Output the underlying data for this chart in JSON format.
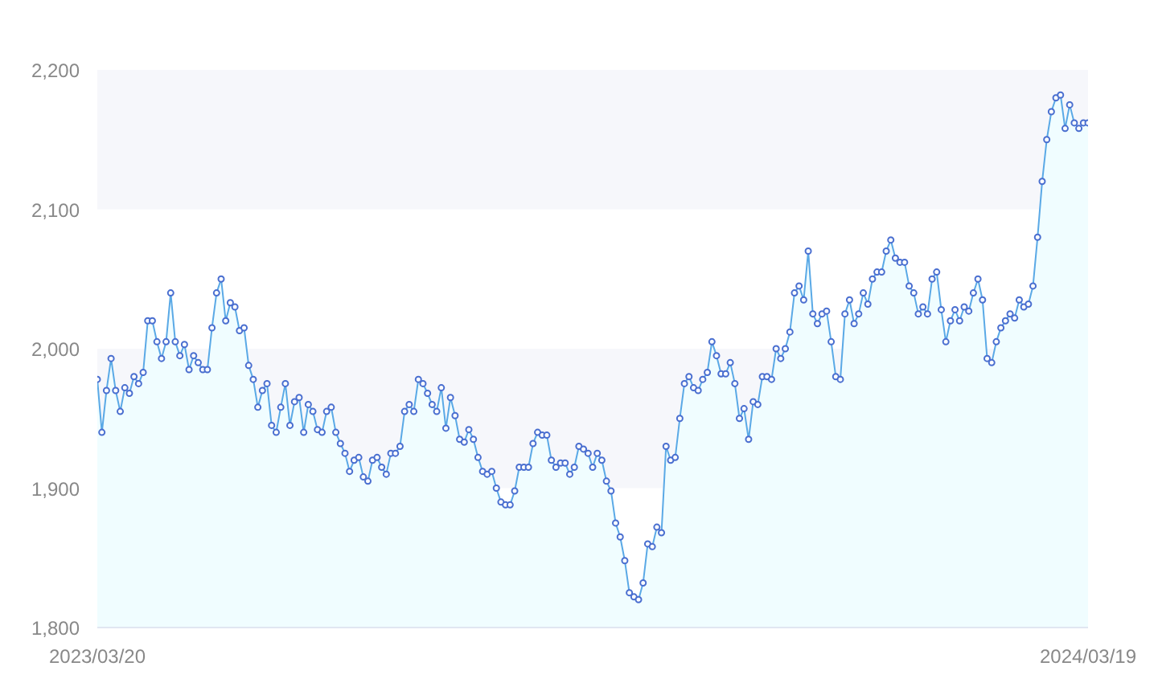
{
  "chart_data": {
    "type": "area",
    "marker": "circle",
    "line_style": "solid",
    "categories": [
      "2023/03/20",
      null,
      null,
      null,
      null,
      null,
      null,
      null,
      null,
      null,
      null,
      null,
      null,
      null,
      null,
      null,
      null,
      null,
      null,
      null,
      null,
      null,
      null,
      null,
      null,
      null,
      null,
      null,
      null,
      null,
      null,
      null,
      null,
      null,
      null,
      null,
      null,
      null,
      null,
      null,
      null,
      null,
      null,
      null,
      null,
      null,
      null,
      null,
      null,
      null,
      null,
      null,
      null,
      null,
      null,
      null,
      null,
      null,
      null,
      null,
      null,
      null,
      null,
      null,
      null,
      null,
      null,
      null,
      null,
      null,
      null,
      null,
      null,
      null,
      null,
      null,
      null,
      null,
      null,
      null,
      null,
      null,
      null,
      null,
      null,
      null,
      null,
      null,
      null,
      null,
      null,
      null,
      null,
      null,
      null,
      null,
      null,
      null,
      null,
      null,
      null,
      null,
      null,
      null,
      null,
      null,
      null,
      null,
      null,
      null,
      null,
      null,
      null,
      null,
      null,
      null,
      null,
      null,
      null,
      null,
      null,
      null,
      null,
      null,
      null,
      null,
      null,
      null,
      null,
      null,
      null,
      null,
      null,
      null,
      null,
      null,
      null,
      null,
      null,
      null,
      null,
      null,
      null,
      null,
      null,
      null,
      null,
      null,
      null,
      null,
      null,
      null,
      null,
      null,
      null,
      null,
      null,
      null,
      null,
      null,
      null,
      null,
      null,
      null,
      null,
      null,
      null,
      null,
      null,
      null,
      null,
      null,
      null,
      null,
      null,
      null,
      null,
      null,
      null,
      null,
      null,
      null,
      null,
      null,
      null,
      null,
      null,
      null,
      null,
      null,
      null,
      null,
      null,
      null,
      null,
      null,
      null,
      null,
      null,
      null,
      null,
      null,
      null,
      null,
      null,
      null,
      null,
      null,
      null,
      null,
      null,
      null,
      null,
      null,
      null,
      null,
      "2024/03/19"
    ],
    "series": [
      {
        "color": "#5aa9e6",
        "values": [
          1978,
          1940,
          1970,
          1993,
          1970,
          1955,
          1972,
          1968,
          1980,
          1975,
          1983,
          2020,
          2020,
          2005,
          1993,
          2005,
          2040,
          2005,
          1995,
          2003,
          1985,
          1995,
          1990,
          1985,
          1985,
          2015,
          2040,
          2050,
          2020,
          2033,
          2030,
          2013,
          2015,
          1988,
          1978,
          1958,
          1970,
          1975,
          1945,
          1940,
          1958,
          1975,
          1945,
          1962,
          1965,
          1940,
          1960,
          1955,
          1942,
          1940,
          1955,
          1958,
          1940,
          1932,
          1925,
          1912,
          1920,
          1922,
          1908,
          1905,
          1920,
          1922,
          1915,
          1910,
          1925,
          1925,
          1930,
          1955,
          1960,
          1955,
          1978,
          1975,
          1968,
          1960,
          1955,
          1972,
          1943,
          1965,
          1952,
          1935,
          1933,
          1942,
          1935,
          1922,
          1912,
          1910,
          1912,
          1900,
          1890,
          1888,
          1888,
          1898,
          1915,
          1915,
          1915,
          1932,
          1940,
          1938,
          1938,
          1920,
          1915,
          1918,
          1918,
          1910,
          1915,
          1930,
          1928,
          1925,
          1915,
          1925,
          1920,
          1905,
          1898,
          1875,
          1865,
          1848,
          1825,
          1822,
          1820,
          1832,
          1860,
          1858,
          1872,
          1868,
          1930,
          1920,
          1922,
          1950,
          1975,
          1980,
          1972,
          1970,
          1978,
          1983,
          2005,
          1995,
          1982,
          1982,
          1990,
          1975,
          1950,
          1957,
          1935,
          1962,
          1960,
          1980,
          1980,
          1978,
          2000,
          1993,
          2000,
          2012,
          2040,
          2045,
          2035,
          2070,
          2025,
          2018,
          2025,
          2027,
          2005,
          1980,
          1978,
          2025,
          2035,
          2018,
          2025,
          2040,
          2032,
          2050,
          2055,
          2055,
          2070,
          2078,
          2065,
          2062,
          2062,
          2045,
          2040,
          2025,
          2030,
          2025,
          2050,
          2055,
          2028,
          2005,
          2020,
          2028,
          2020,
          2030,
          2027,
          2040,
          2050,
          2035,
          1993,
          1990,
          2005,
          2015,
          2020,
          2025,
          2022,
          2035,
          2030,
          2032,
          2045,
          2080,
          2120,
          2150,
          2170,
          2180,
          2182,
          2158,
          2175,
          2162,
          2158,
          2162,
          2162
        ]
      }
    ],
    "ylim": [
      1800,
      2200
    ],
    "yticks": [
      {
        "value": 1800,
        "label": "1,800"
      },
      {
        "value": 1900,
        "label": "1,900"
      },
      {
        "value": 2000,
        "label": "2,000"
      },
      {
        "value": 2100,
        "label": "2,100"
      },
      {
        "value": 2200,
        "label": "2,200"
      }
    ],
    "bands": [
      {
        "axis": "y",
        "from": 1900,
        "to": 2000,
        "color": "#f6f7fb"
      },
      {
        "axis": "y",
        "from": 2100,
        "to": 2200,
        "color": "#f6f7fb"
      }
    ]
  }
}
